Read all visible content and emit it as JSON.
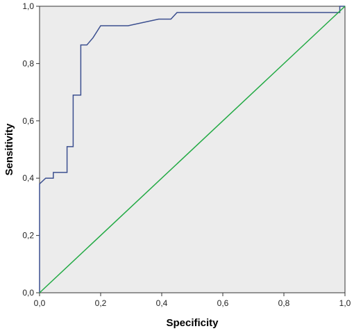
{
  "chart_data": {
    "type": "line",
    "title": "",
    "xlabel": "Specificity",
    "ylabel": "Sensitivity",
    "xlim": [
      0,
      1
    ],
    "ylim": [
      0,
      1
    ],
    "x_ticks": [
      "0,0",
      "0,2",
      "0,4",
      "0,6",
      "0,8",
      "1,0"
    ],
    "y_ticks": [
      "0,0",
      "0,2",
      "0,4",
      "0,6",
      "0,8",
      "1,0"
    ],
    "grid": false,
    "legend": "none",
    "background_color": "#ececec",
    "series": [
      {
        "color": "#3b4f8f",
        "step": true,
        "x": [
          0.0,
          0.0,
          0.02,
          0.02,
          0.045,
          0.045,
          0.09,
          0.09,
          0.11,
          0.11,
          0.135,
          0.135,
          0.155,
          0.175,
          0.2,
          0.29,
          0.39,
          0.43,
          0.45,
          0.983,
          0.983,
          1.0,
          1.0
        ],
        "y": [
          0.0,
          0.38,
          0.4,
          0.4,
          0.4,
          0.42,
          0.42,
          0.51,
          0.51,
          0.69,
          0.69,
          0.865,
          0.865,
          0.89,
          0.932,
          0.932,
          0.955,
          0.955,
          0.978,
          0.978,
          1.0,
          1.0,
          1.0
        ]
      },
      {
        "color": "#22aa44",
        "x": [
          0,
          1
        ],
        "y": [
          0,
          1
        ]
      }
    ]
  }
}
